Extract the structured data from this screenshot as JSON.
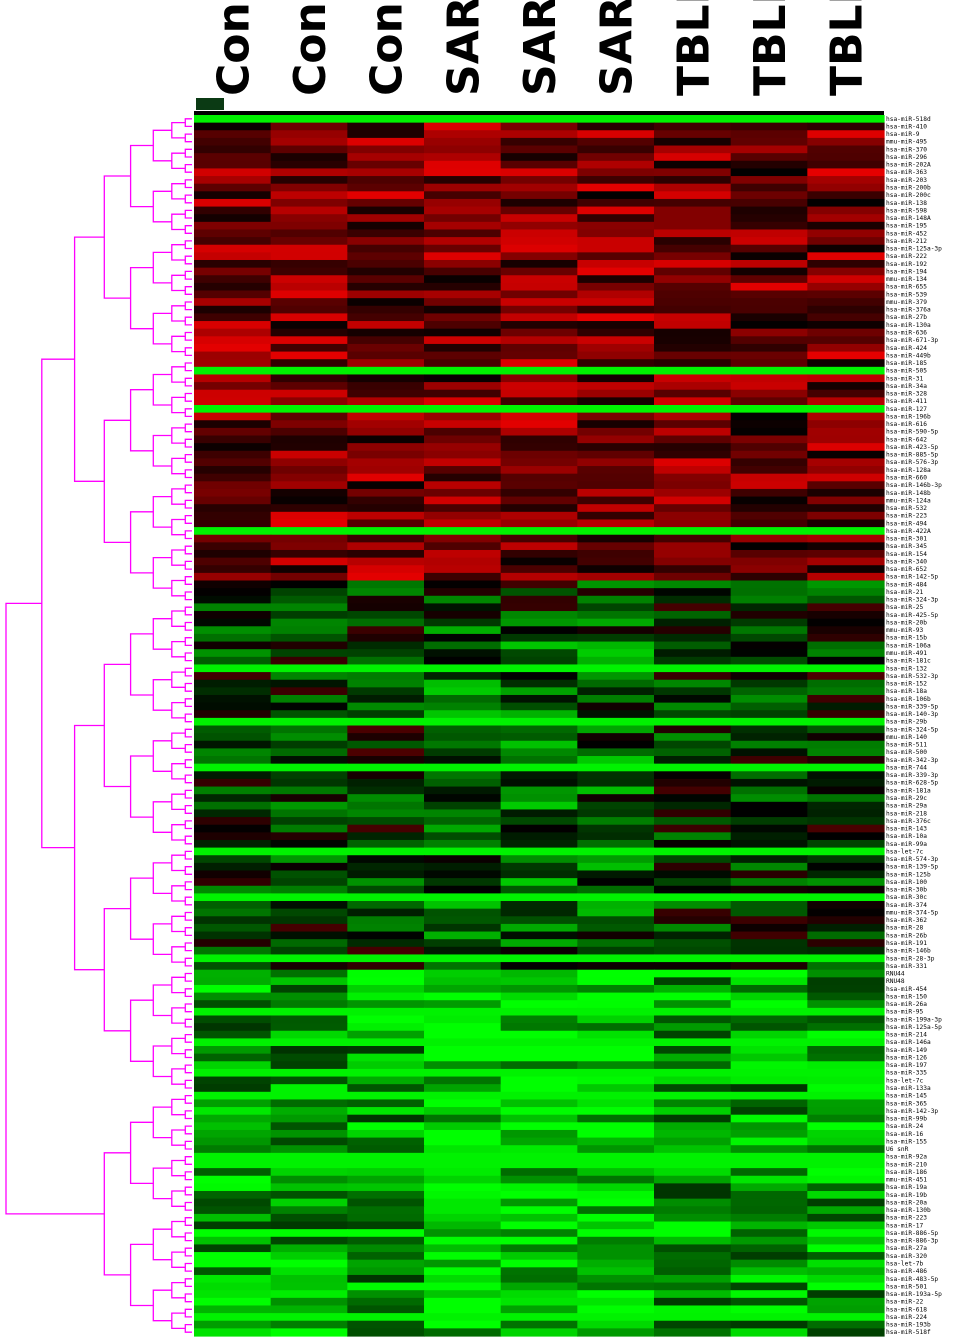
{
  "chart_data": {
    "type": "heatmap",
    "title": "",
    "columns": [
      "Con",
      "Con",
      "Con",
      "SAR",
      "SAR",
      "SAR",
      "TBLN",
      "TBLN",
      "TBLN"
    ],
    "rows": [
      "hsa-miR-518d",
      "hsa-miR-410",
      "hsa-miR-9",
      "mmu-miR-495",
      "hsa-miR-370",
      "hsa-miR-296",
      "hsa-miR-202A",
      "hsa-miR-363",
      "hsa-miR-203",
      "hsa-miR-200b",
      "hsa-miR-200c",
      "hsa-miR-138",
      "hsa-miR-598",
      "hsa-miR-148A",
      "hsa-miR-195",
      "hsa-miR-452",
      "hsa-miR-212",
      "hsa-miR-125a-3p",
      "hsa-miR-222",
      "hsa-miR-192",
      "hsa-miR-194",
      "mmu-miR-134",
      "hsa-miR-655",
      "hsa-miR-539",
      "mmu-miR-379",
      "hsa-miR-376a",
      "hsa-miR-27b",
      "hsa-miR-130a",
      "hsa-miR-636",
      "hsa-miR-671-3p",
      "hsa-miR-424",
      "hsa-miR-449b",
      "hsa-miR-185",
      "hsa-miR-505",
      "hsa-miR-31",
      "hsa-miR-34a",
      "hsa-miR-328",
      "hsa-miR-411",
      "hsa-miR-127",
      "hsa-miR-196b",
      "hsa-miR-616",
      "hsa-miR-590-5p",
      "hsa-miR-642",
      "hsa-miR-423-5p",
      "hsa-miR-885-5p",
      "hsa-miR-576-3p",
      "hsa-miR-128a",
      "hsa-miR-660",
      "hsa-miR-146b-3p",
      "hsa-miR-148b",
      "mmu-miR-124a",
      "hsa-miR-532",
      "hsa-miR-223",
      "hsa-miR-494",
      "hsa-miR-422A",
      "hsa-miR-301",
      "hsa-miR-345",
      "hsa-miR-154",
      "hsa-miR-340",
      "hsa-miR-652",
      "hsa-miR-142-5p",
      "hsa-miR-484",
      "hsa-miR-21",
      "hsa-miR-324-3p",
      "hsa-miR-25",
      "hsa-miR-425-5p",
      "hsa-miR-20b",
      "mmu-miR-93",
      "hsa-miR-15b",
      "hsa-miR-106a",
      "mmu-miR-491",
      "hsa-miR-181c",
      "hsa-miR-132",
      "hsa-miR-532-3p",
      "hsa-miR-152",
      "hsa-miR-18a",
      "hsa-miR-106b",
      "hsa-miR-339-5p",
      "hsa-miR-140-3p",
      "hsa-miR-29b",
      "hsa-miR-324-5p",
      "mmu-miR-140",
      "hsa-miR-511",
      "hsa-miR-500",
      "hsa-miR-342-3p",
      "hsa-miR-744",
      "hsa-miR-339-3p",
      "hsa-miR-628-5p",
      "hsa-miR-181a",
      "hsa-miR-29c",
      "hsa-miR-29a",
      "hsa-miR-218",
      "hsa-miR-376c",
      "hsa-miR-143",
      "hsa-miR-10a",
      "hsa-miR-99a",
      "hsa-let-7c",
      "hsa-miR-574-3p",
      "hsa-miR-139-5p",
      "hsa-miR-125b",
      "hsa-miR-100",
      "hsa-miR-30b",
      "hsa-miR-30c",
      "hsa-miR-374",
      "mmu-miR-374-5p",
      "hsa-miR-362",
      "hsa-miR-28",
      "hsa-miR-26b",
      "hsa-miR-191",
      "hsa-miR-146b",
      "hsa-miR-28-3p",
      "hsa-miR-331",
      "RNU44",
      "RNU48",
      "hsa-miR-454",
      "hsa-miR-150",
      "hsa-miR-26a",
      "hsa-miR-95",
      "hsa-miR-199a-3p",
      "hsa-miR-125a-5p",
      "hsa-miR-214",
      "hsa-miR-146a",
      "hsa-miR-149",
      "hsa-miR-126",
      "hsa-miR-197",
      "hsa-miR-335",
      "hsa-let-7c",
      "hsa-miR-133a",
      "hsa-miR-145",
      "hsa-miR-365",
      "hsa-miR-142-3p",
      "hsa-miR-99b",
      "hsa-miR-24",
      "hsa-miR-16",
      "hsa-miR-155",
      "U6 snR",
      "hsa-miR-92a",
      "hsa-miR-210",
      "hsa-miR-186",
      "mmu-miR-451",
      "hsa-miR-19a",
      "hsa-miR-19b",
      "hsa-miR-20a",
      "hsa-miR-130b",
      "hsa-miR-223",
      "hsa-miR-17",
      "hsa-miR-886-5p",
      "hsa-miR-886-3p",
      "hsa-miR-27a",
      "hsa-miR-320",
      "hsa-let-7b",
      "hsa-miR-486",
      "hsa-miR-483-5p",
      "hsa-miR-501",
      "hsa-miR-193a-5p",
      "hsa-miR-22",
      "hsa-miR-618",
      "hsa-miR-224",
      "hsa-miR-193b",
      "hsa-miR-518f"
    ],
    "value_range": [
      -1,
      1
    ],
    "color_scale": {
      "low": "#00ff00",
      "mid": "#000000",
      "high": "#ff0000"
    },
    "row_dendrogram": true,
    "dendrogram_color": "#ff00ff",
    "legend": "none",
    "grid": false
  }
}
